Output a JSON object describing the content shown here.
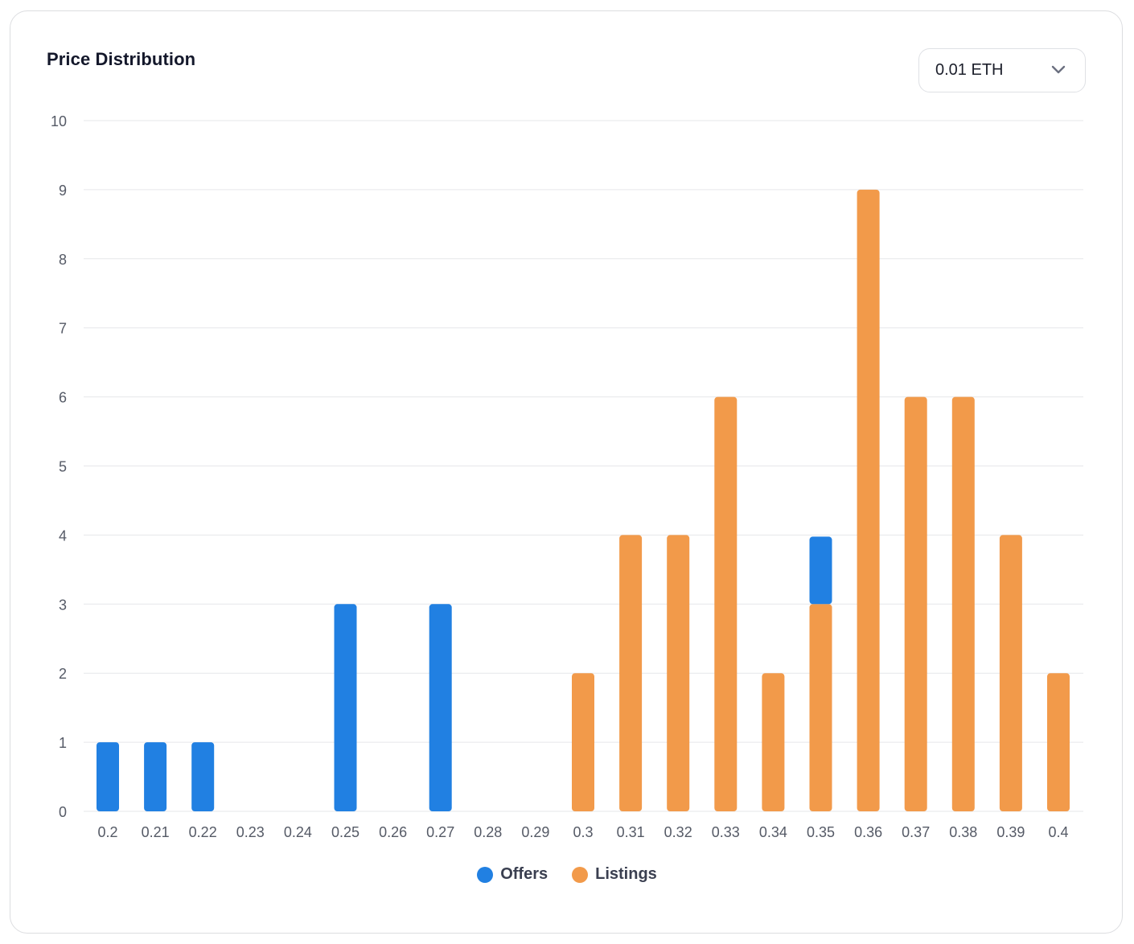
{
  "card": {
    "title": "Price Distribution"
  },
  "interval_select": {
    "value": "0.01 ETH",
    "icon": "chevron-down-icon"
  },
  "colors": {
    "offers": "#2180E2",
    "listings": "#F29A4A",
    "grid": "#e6e7ea",
    "tick_text": "#555a66"
  },
  "legend": {
    "items": [
      {
        "name": "Offers",
        "color": "#2180E2"
      },
      {
        "name": "Listings",
        "color": "#F29A4A"
      }
    ]
  },
  "chart_data": {
    "type": "bar",
    "stacked": true,
    "title": "Price Distribution",
    "xlabel": "",
    "ylabel": "",
    "ylim": [
      0,
      10
    ],
    "yticks": [
      0,
      1,
      2,
      3,
      4,
      5,
      6,
      7,
      8,
      9,
      10
    ],
    "grid": true,
    "legend_position": "bottom-center",
    "categories": [
      "0.2",
      "0.21",
      "0.22",
      "0.23",
      "0.24",
      "0.25",
      "0.26",
      "0.27",
      "0.28",
      "0.29",
      "0.3",
      "0.31",
      "0.32",
      "0.33",
      "0.34",
      "0.35",
      "0.36",
      "0.37",
      "0.38",
      "0.39",
      "0.4"
    ],
    "series": [
      {
        "name": "Listings",
        "color": "#F29A4A",
        "values": [
          0,
          0,
          0,
          0,
          0,
          0,
          0,
          0,
          0,
          0,
          2,
          4,
          4,
          6,
          2,
          3,
          9,
          6,
          6,
          4,
          2
        ]
      },
      {
        "name": "Offers",
        "color": "#2180E2",
        "values": [
          1,
          1,
          1,
          0,
          0,
          3,
          0,
          3,
          0,
          0,
          0,
          0,
          0,
          0,
          0,
          1,
          0,
          0,
          0,
          0,
          0
        ]
      }
    ]
  }
}
